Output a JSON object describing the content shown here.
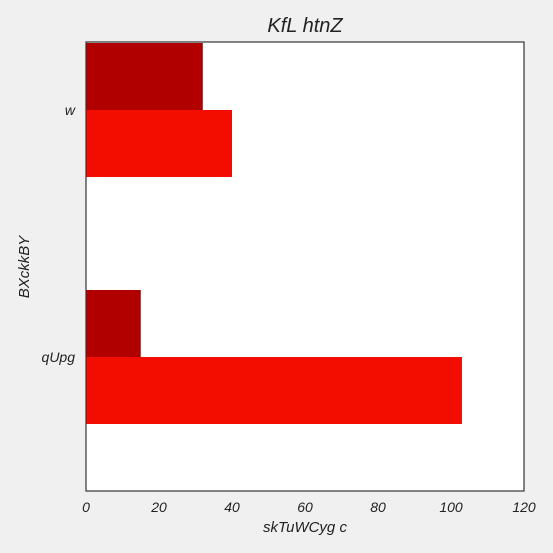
{
  "chart_data": {
    "type": "bar",
    "orientation": "horizontal",
    "title": "KfL htnZ",
    "xlabel": "skTuWCyg c",
    "ylabel": "BXckkBY",
    "categories": [
      "w",
      "qUpg"
    ],
    "series": [
      {
        "color": "#b00000",
        "values": [
          32,
          15
        ]
      },
      {
        "color": "#f20d00",
        "values": [
          40,
          103
        ]
      }
    ],
    "xlim": [
      0,
      120
    ],
    "xticks": [
      "0",
      "20",
      "40",
      "60",
      "80",
      "100",
      "120"
    ],
    "grid": false,
    "legend": "none"
  }
}
